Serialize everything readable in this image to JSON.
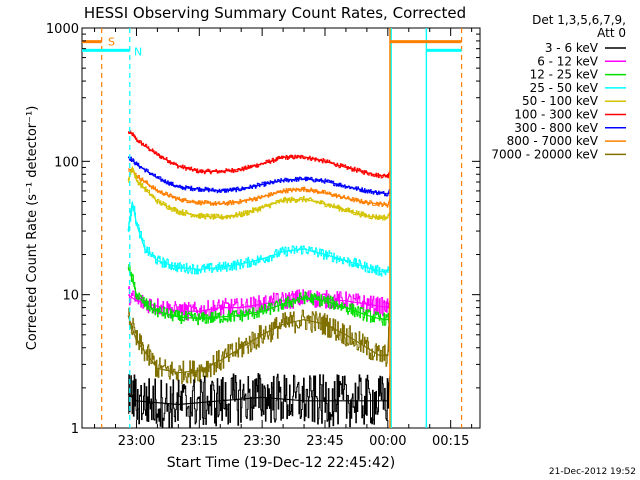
{
  "chart_data": {
    "type": "line",
    "title": "HESSI Observing Summary Count Rates, Corrected",
    "xlabel": "Start Time (19-Dec-12 22:45:42)",
    "ylabel": "Corrected Count Rate (s⁻¹ detector⁻¹)",
    "xlim_minutes": [
      -13,
      82
    ],
    "y_scale": "log",
    "ylim": [
      1,
      1000
    ],
    "x_ticks": [
      {
        "minute": 0,
        "label": "23:00"
      },
      {
        "minute": 15,
        "label": "23:15"
      },
      {
        "minute": 30,
        "label": "23:30"
      },
      {
        "minute": 45,
        "label": "23:45"
      },
      {
        "minute": 60,
        "label": "00:00"
      },
      {
        "minute": 75,
        "label": "00:15"
      }
    ],
    "y_ticks": [
      {
        "value": 1,
        "label": "1"
      },
      {
        "value": 10,
        "label": "10"
      },
      {
        "value": 100,
        "label": "100"
      },
      {
        "value": 1000,
        "label": "1000"
      }
    ],
    "legend": {
      "placement": "right",
      "header": [
        "Det 1,3,5,6,7,9,",
        "Att 0"
      ],
      "entries": [
        {
          "label": "3 - 6 keV",
          "color": "#000000"
        },
        {
          "label": "6 - 12 keV",
          "color": "#ff00ff"
        },
        {
          "label": "12 - 25 keV",
          "color": "#00e000"
        },
        {
          "label": "25 - 50 keV",
          "color": "#00ffff"
        },
        {
          "label": "50 - 100 keV",
          "color": "#d4c400"
        },
        {
          "label": "100 - 300 keV",
          "color": "#ff0000"
        },
        {
          "label": "300 - 800 keV",
          "color": "#0000ff"
        },
        {
          "label": "800 - 7000 keV",
          "color": "#ff8000"
        },
        {
          "label": "7000 - 20000 keV",
          "color": "#807000"
        }
      ]
    },
    "series": [
      {
        "name": "100 - 300 keV",
        "color": "#ff0000",
        "noise": 0.04,
        "x": [
          -2,
          -1,
          0,
          5,
          10,
          15,
          20,
          25,
          30,
          35,
          40,
          45,
          50,
          55,
          58,
          60,
          60.5
        ],
        "values": [
          165,
          160,
          145,
          112,
          92,
          84,
          84,
          87,
          96,
          107,
          108,
          100,
          90,
          82,
          78,
          78,
          85
        ]
      },
      {
        "name": "300 - 800 keV",
        "color": "#0000ff",
        "noise": 0.04,
        "x": [
          -2,
          -1,
          0,
          5,
          10,
          15,
          20,
          25,
          30,
          35,
          40,
          45,
          50,
          55,
          58,
          60,
          60.5
        ],
        "values": [
          108,
          102,
          95,
          75,
          64,
          62,
          60,
          62,
          67,
          72,
          74,
          71,
          65,
          60,
          58,
          57,
          62
        ]
      },
      {
        "name": "800 - 7000 keV",
        "color": "#ff8000",
        "noise": 0.04,
        "x": [
          -2,
          -1,
          0,
          5,
          10,
          15,
          20,
          25,
          30,
          35,
          40,
          45,
          50,
          55,
          58,
          60,
          60.5
        ],
        "values": [
          88,
          85,
          78,
          60,
          52,
          49,
          48,
          50,
          54,
          60,
          62,
          58,
          53,
          49,
          48,
          47,
          52
        ]
      },
      {
        "name": "50 - 100 keV",
        "color": "#d4c400",
        "noise": 0.05,
        "x": [
          -2,
          -1,
          0,
          5,
          10,
          15,
          20,
          25,
          30,
          35,
          40,
          45,
          50,
          55,
          58,
          60,
          60.5
        ],
        "values": [
          72,
          90,
          72,
          50,
          42,
          39,
          38,
          40,
          45,
          51,
          52,
          48,
          43,
          39,
          38,
          38,
          42
        ]
      },
      {
        "name": "25 - 50 keV",
        "color": "#00ffff",
        "noise": 0.09,
        "x": [
          -2,
          -1,
          0,
          2,
          5,
          10,
          15,
          20,
          25,
          30,
          35,
          40,
          45,
          50,
          55,
          58,
          60,
          60.5
        ],
        "values": [
          30,
          50,
          34,
          22,
          18,
          16,
          15.5,
          16,
          17,
          18.5,
          21,
          22,
          20,
          18,
          16,
          15,
          15,
          16
        ]
      },
      {
        "name": "6 - 12 keV",
        "color": "#ff00ff",
        "noise": 0.16,
        "x": [
          -2,
          0,
          5,
          10,
          15,
          20,
          25,
          30,
          35,
          40,
          45,
          50,
          55,
          58,
          60,
          60.5
        ],
        "values": [
          10,
          9,
          8.2,
          7.5,
          7.5,
          8,
          8,
          8.5,
          9,
          9.5,
          9.2,
          9,
          8.5,
          8.2,
          8,
          9
        ]
      },
      {
        "name": "12 - 25 keV",
        "color": "#00e000",
        "noise": 0.11,
        "x": [
          -2,
          -1,
          0,
          2,
          5,
          10,
          15,
          20,
          25,
          30,
          35,
          40,
          45,
          50,
          55,
          58,
          60,
          60.5
        ],
        "values": [
          16,
          13,
          10,
          8.5,
          7.5,
          6.8,
          6.6,
          6.8,
          7,
          7.5,
          8.5,
          9.5,
          9,
          8,
          7,
          6.6,
          6.5,
          7
        ]
      },
      {
        "name": "7000 - 20000 keV",
        "color": "#807000",
        "noise": 0.2,
        "x": [
          -2,
          0,
          5,
          10,
          15,
          20,
          25,
          30,
          35,
          40,
          45,
          50,
          55,
          58,
          60,
          60.5
        ],
        "values": [
          7,
          4.5,
          2.8,
          2.6,
          2.7,
          3.2,
          4,
          5,
          6,
          6.5,
          6,
          5,
          4,
          3.5,
          3.5,
          9
        ]
      },
      {
        "name": "3 - 6 keV",
        "color": "#000000",
        "noise": 0.45,
        "x": [
          -2,
          0,
          10,
          20,
          30,
          40,
          50,
          58,
          60,
          60.5
        ],
        "values": [
          1.8,
          1.6,
          1.5,
          1.6,
          1.7,
          1.6,
          1.6,
          1.6,
          1.6,
          2.5
        ]
      }
    ],
    "annotations": [
      {
        "label": "S",
        "color": "#ff8000"
      },
      {
        "label": "N",
        "color": "#00ffff"
      }
    ],
    "footer_date": "21-Dec-2012 19:52"
  }
}
